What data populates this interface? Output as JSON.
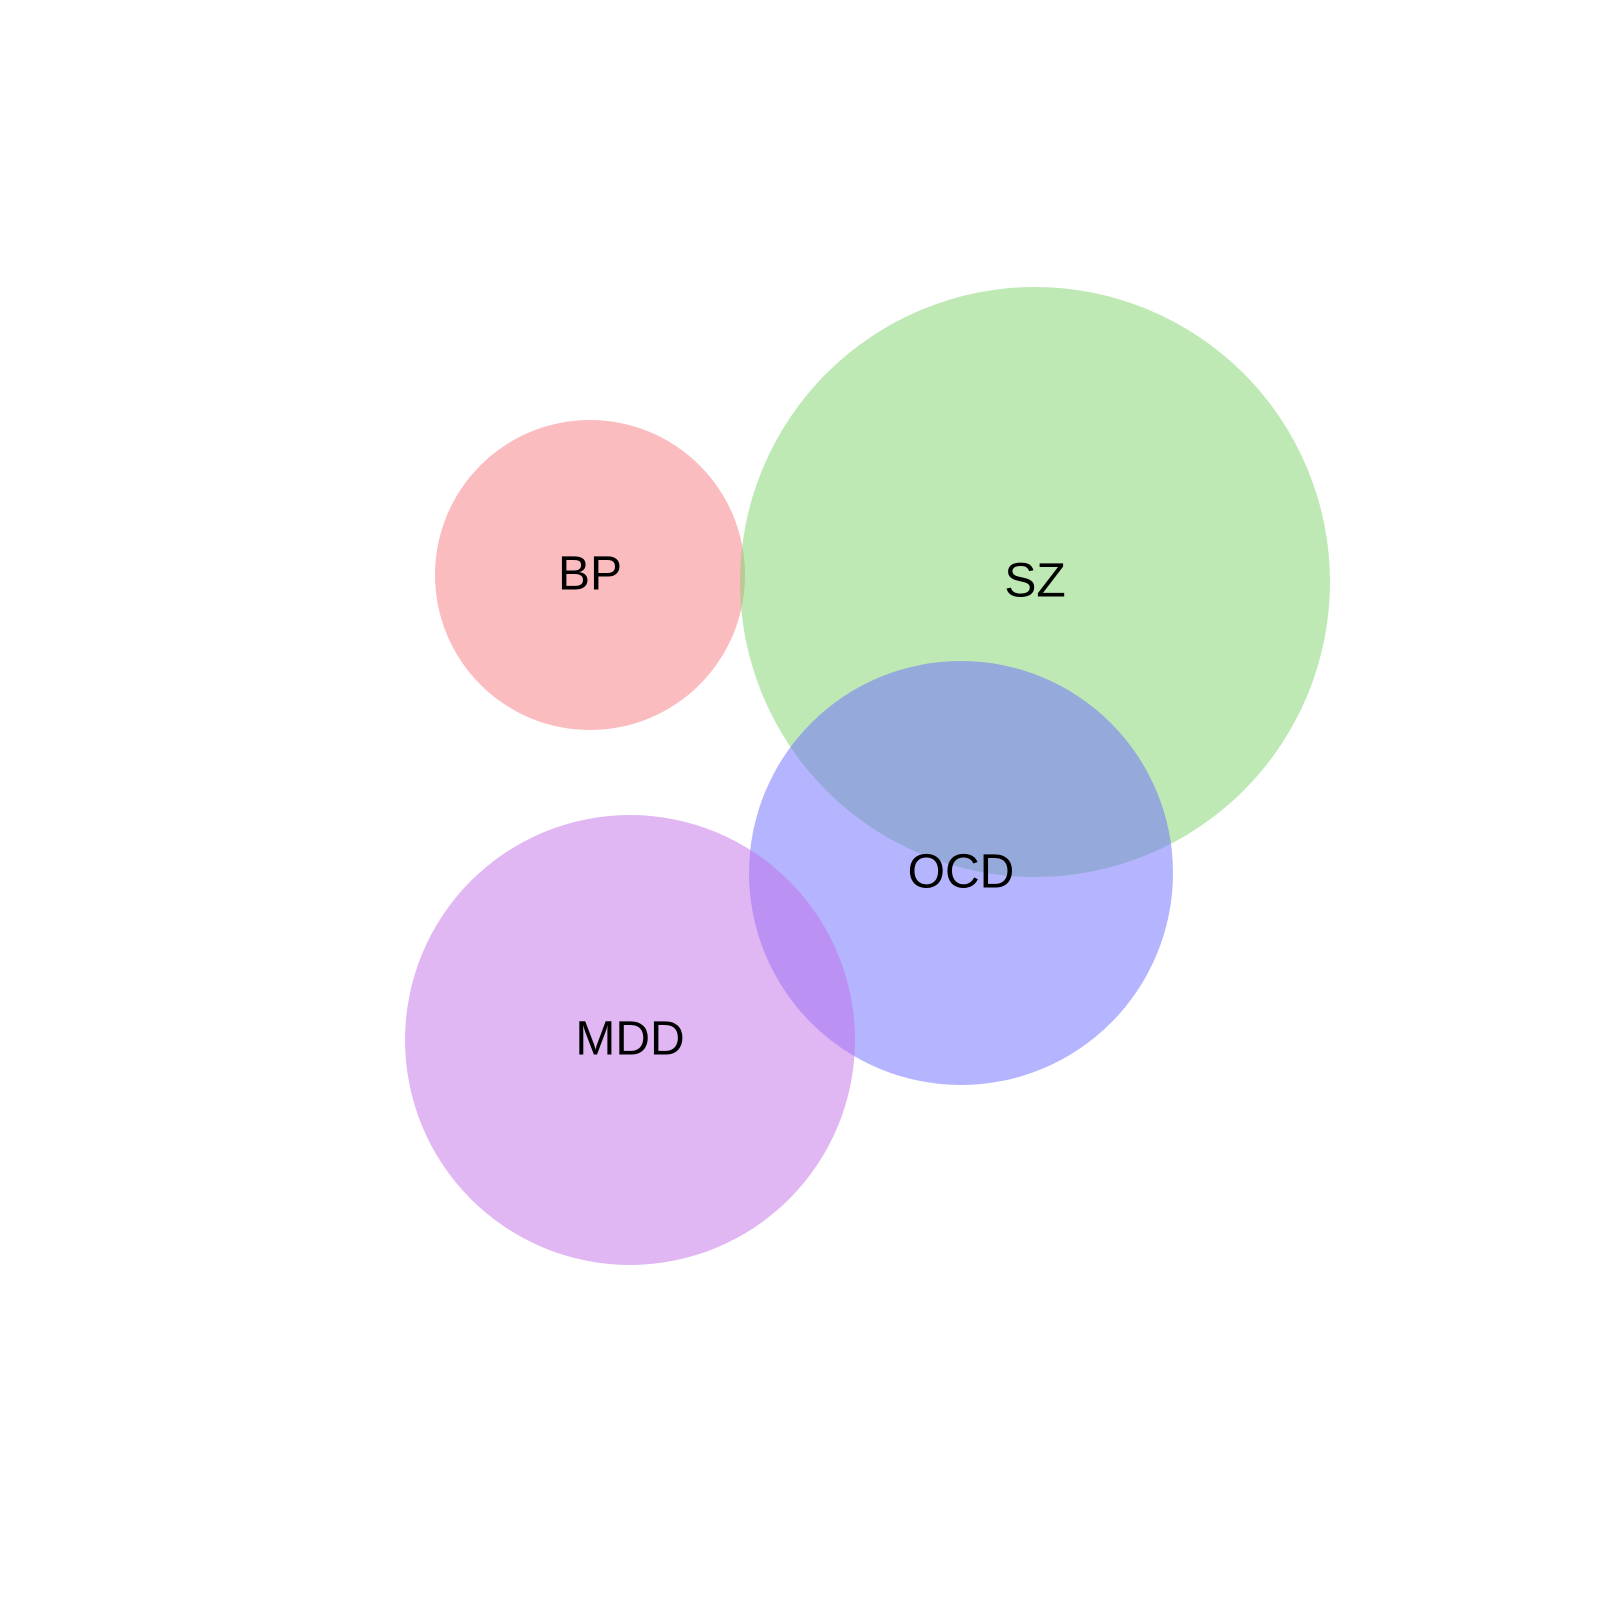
{
  "diagram": {
    "type": "venn",
    "sets": [
      {
        "id": "bp",
        "label": "BP",
        "color": "#f87a80"
      },
      {
        "id": "sz",
        "label": "SZ",
        "color": "#7ed36c"
      },
      {
        "id": "ocd",
        "label": "OCD",
        "color": "#6b6cff"
      },
      {
        "id": "mdd",
        "label": "MDD",
        "color": "#c16fe7"
      }
    ],
    "overlaps": [
      [
        "BP",
        "SZ"
      ],
      [
        "SZ",
        "OCD"
      ],
      [
        "OCD",
        "MDD"
      ]
    ]
  }
}
